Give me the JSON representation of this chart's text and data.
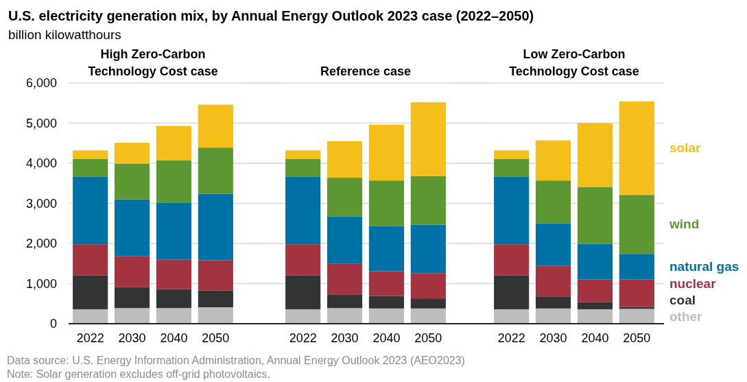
{
  "chart_data": [
    {
      "type": "bar",
      "stacked": true,
      "title": "U.S. electricity generation mix, by Annual Energy Outlook 2023 case (2022–2050)",
      "subtitle": "billion kilowatthours",
      "annotations": [
        "Data source: U.S. Energy Information Administration, Annual Energy Outlook 2023 (AEO2023)",
        "Note: Solar generation excludes off-grid photovoltaics."
      ],
      "ylim": [
        0,
        6000
      ],
      "yticks": [
        {
          "value": 0,
          "label": "0"
        },
        {
          "value": 1000,
          "label": "1,000"
        },
        {
          "value": 2000,
          "label": "2,000"
        },
        {
          "value": 3000,
          "label": "3,000"
        },
        {
          "value": 4000,
          "label": "4,000"
        },
        {
          "value": 5000,
          "label": "5,000"
        },
        {
          "value": 6000,
          "label": "6,000"
        }
      ],
      "grid": "y",
      "xlabel": "High Zero-Carbon Technology Cost case",
      "categories": [
        "2022",
        "2030",
        "2040",
        "2050"
      ],
      "series": [
        {
          "color": "#bdbdbd",
          "values": [
            360,
            390,
            390,
            410
          ]
        },
        {
          "color": "#333333",
          "values": [
            840,
            520,
            470,
            420
          ]
        },
        {
          "color": "#a33340",
          "values": [
            780,
            770,
            740,
            750
          ]
        },
        {
          "color": "#0071a4",
          "values": [
            1690,
            1420,
            1410,
            1660
          ]
        },
        {
          "color": "#5d9732",
          "values": [
            440,
            890,
            1060,
            1150
          ]
        },
        {
          "color": "#f5bf1b",
          "values": [
            210,
            520,
            860,
            1070
          ]
        }
      ]
    },
    {
      "type": "bar",
      "stacked": true,
      "xlabel": "Reference case",
      "ylim": [
        0,
        6000
      ],
      "tick_labels": "x",
      "grid": "y",
      "categories": [
        "2022",
        "2030",
        "2040",
        "2050"
      ],
      "series": [
        {
          "color": "#bdbdbd",
          "values": [
            360,
            390,
            380,
            380
          ]
        },
        {
          "color": "#333333",
          "values": [
            840,
            330,
            310,
            250
          ]
        },
        {
          "color": "#a33340",
          "values": [
            780,
            780,
            620,
            630
          ]
        },
        {
          "color": "#0071a4",
          "values": [
            1690,
            1170,
            1120,
            1210
          ]
        },
        {
          "color": "#5d9732",
          "values": [
            440,
            970,
            1140,
            1210
          ]
        },
        {
          "color": "#f5bf1b",
          "values": [
            210,
            910,
            1390,
            1840
          ]
        }
      ]
    },
    {
      "type": "bar",
      "stacked": true,
      "xlabel": "Low Zero-Carbon Technology Cost case",
      "ylim": [
        0,
        6000
      ],
      "tick_labels": "x",
      "grid": "y",
      "legend": "right",
      "categories": [
        "2022",
        "2030",
        "2040",
        "2050"
      ],
      "series": [
        {
          "name": "other",
          "color": "#bdbdbd",
          "values": [
            360,
            380,
            360,
            370
          ]
        },
        {
          "name": "coal",
          "color": "#333333",
          "values": [
            840,
            300,
            180,
            50
          ]
        },
        {
          "name": "nuclear",
          "color": "#a33340",
          "values": [
            780,
            760,
            560,
            680
          ]
        },
        {
          "name": "natural gas",
          "color": "#0071a4",
          "values": [
            1690,
            1060,
            890,
            640
          ]
        },
        {
          "name": "wind",
          "color": "#5d9732",
          "values": [
            440,
            1070,
            1420,
            1470
          ]
        },
        {
          "name": "solar",
          "color": "#f5bf1b",
          "values": [
            210,
            1000,
            1590,
            2330
          ]
        }
      ]
    }
  ]
}
